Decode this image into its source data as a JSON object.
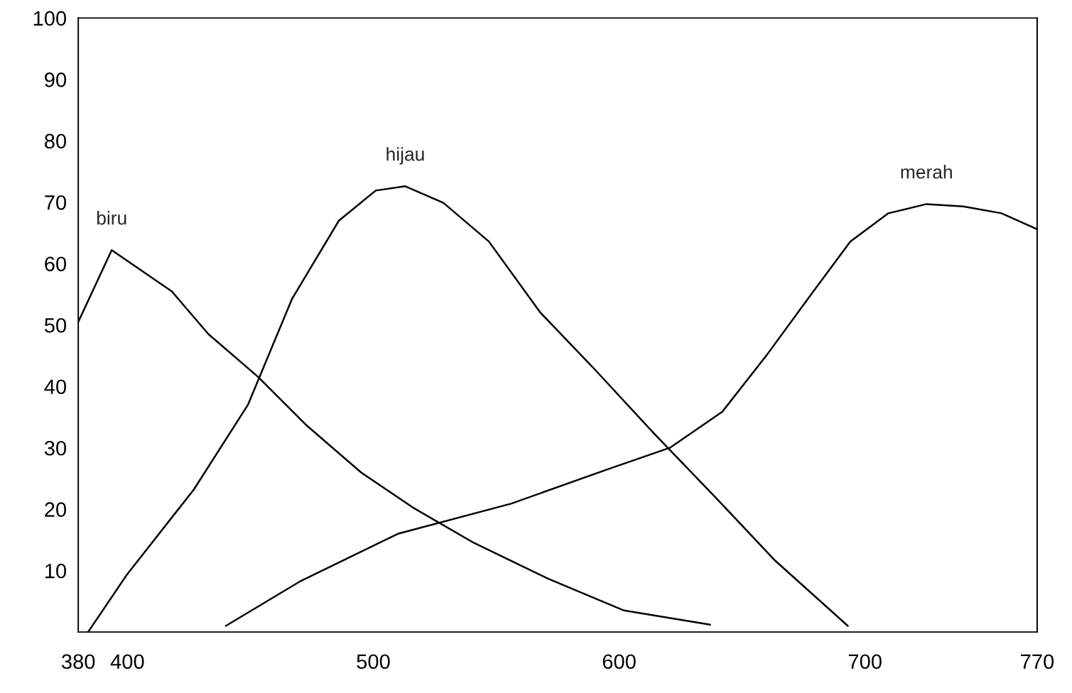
{
  "chart_data": {
    "type": "line",
    "xlim": [
      380,
      770
    ],
    "ylim": [
      0,
      100
    ],
    "xticks": [
      380,
      400,
      500,
      600,
      700,
      770
    ],
    "yticks": [
      10,
      20,
      30,
      40,
      50,
      60,
      70,
      80,
      90,
      100
    ],
    "grid": false,
    "legend": false,
    "marker": "none",
    "line_style": "solid",
    "series": [
      {
        "name": "biru",
        "color": "#000000",
        "x": [
          380,
          393.6,
          418,
          433,
          453,
          473,
          495,
          516,
          541,
          571,
          602,
          637
        ],
        "values": [
          50.5,
          62.2,
          55.5,
          48.5,
          41.6,
          33.6,
          26,
          20.3,
          14.5,
          8.7,
          3.5,
          1.2
        ]
      },
      {
        "name": "hijau",
        "color": "#000000",
        "x": [
          384,
          399.7,
          427,
          449,
          467,
          486,
          501,
          513,
          528.5,
          547,
          568,
          590,
          614,
          639,
          663.5,
          693
        ],
        "values": [
          0,
          9.3,
          23.2,
          37,
          54.3,
          67,
          71.9,
          72.6,
          69.9,
          63.6,
          52,
          42.8,
          32.4,
          22,
          11.6,
          1
        ]
      },
      {
        "name": "merah",
        "color": "#000000",
        "x": [
          440,
          470,
          510,
          556,
          596,
          620.6,
          642,
          660,
          679,
          694,
          709.5,
          725,
          740,
          755.5,
          770
        ],
        "values": [
          1,
          8.2,
          16,
          20.9,
          26.6,
          30,
          35.9,
          45.1,
          55.5,
          63.6,
          68.2,
          69.7,
          69.3,
          68.2,
          65.6
        ]
      }
    ]
  }
}
